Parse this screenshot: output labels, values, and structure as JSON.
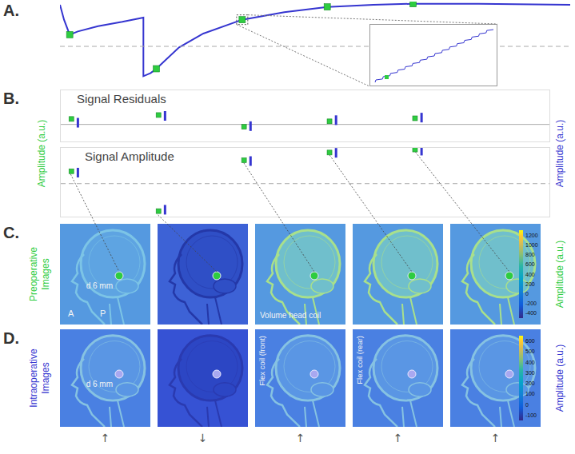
{
  "chart_data": [
    {
      "type": "line",
      "xlim": [
        0,
        630
      ],
      "ylim": [
        20,
        95
      ],
      "tick_labels": false,
      "series": [
        {
          "type": "line",
          "color": "#3535d0",
          "x": [
            0,
            5,
            12,
            22,
            47,
            77,
            103,
            103,
            112,
            119,
            147,
            177,
            225,
            277,
            330,
            387,
            436,
            517,
            630
          ],
          "values": [
            92,
            78,
            64,
            67,
            72,
            76,
            80,
            25,
            28,
            32,
            52,
            65,
            78,
            85,
            90,
            92,
            93,
            93,
            92
          ]
        },
        {
          "type": "scatter",
          "marker": "square",
          "color": "#2ecc40",
          "x": [
            12,
            119,
            225,
            330,
            436
          ],
          "values": [
            64,
            32,
            78,
            90,
            93
          ]
        },
        {
          "type": "reference",
          "line_style": "dashed",
          "color": "#aaaaaa",
          "values": [
            53
          ]
        }
      ]
    },
    {
      "type": "scatter",
      "title": "Signal Residuals",
      "xlim": [
        0,
        6
      ],
      "ylim": [
        -1,
        2
      ],
      "tick_labels": false,
      "series": [
        {
          "type": "scatter",
          "marker": "square",
          "color": "#2ecc40",
          "x": [
            0.13,
            1.2,
            2.25,
            3.3,
            4.35
          ],
          "values": [
            0.32,
            0.55,
            -0.14,
            0.18,
            0.36
          ]
        },
        {
          "type": "scatter",
          "marker": "bar",
          "color": "#3535d0",
          "x": [
            0.21,
            1.28,
            2.33,
            3.38,
            4.43
          ],
          "values": [
            0.1,
            0.5,
            -0.1,
            0.25,
            0.4
          ]
        },
        {
          "type": "reference",
          "line_style": "solid",
          "color": "#aaaaaa",
          "values": [
            0
          ]
        }
      ]
    },
    {
      "type": "scatter",
      "title": "Signal Amplitude",
      "xlim": [
        0,
        6
      ],
      "ylim": [
        -1.2,
        1.3
      ],
      "tick_labels": false,
      "series": [
        {
          "type": "scatter",
          "marker": "square",
          "color": "#2ecc40",
          "x": [
            0.13,
            1.2,
            2.25,
            3.3,
            4.35
          ],
          "values": [
            0.45,
            -1.0,
            0.85,
            1.13,
            1.24
          ]
        },
        {
          "type": "scatter",
          "marker": "bar",
          "color": "#3535d0",
          "x": [
            0.21,
            1.28,
            2.33,
            3.38,
            4.43
          ],
          "values": [
            0.4,
            -0.95,
            0.82,
            1.12,
            1.2
          ]
        },
        {
          "type": "reference",
          "line_style": "dashed",
          "color": "#aaaaaa",
          "values": [
            0
          ]
        }
      ]
    }
  ],
  "figure": {
    "panel_labels": [
      "A.",
      "B.",
      "C.",
      "D."
    ],
    "B": {
      "left_axis_label": {
        "text": "Amplitude (a.u.)",
        "color": "#2ecc40"
      },
      "right_axis_label": {
        "text": "Amplitude (a.u.)",
        "color": "#3535d0"
      }
    },
    "rows": [
      {
        "row_label": "Preoperative Images",
        "axis_label": "Amplitude (a.u.)",
        "color": "#2ecc40",
        "colorbar": {
          "range": [
            -500,
            1300
          ],
          "ticks": [
            1200,
            1000,
            800,
            600,
            400,
            200,
            0,
            -200,
            -400
          ]
        },
        "images": [
          {
            "depth": "d 6 mm",
            "anterior": "A",
            "posterior": "P"
          },
          {},
          {
            "coil": "Volume head coil"
          },
          {},
          {}
        ]
      },
      {
        "row_label": "Intraoperative Images",
        "axis_label": "Amplitude (a.u.)",
        "color": "#3535d0",
        "colorbar": {
          "range": [
            -150,
            650
          ],
          "ticks": [
            600,
            500,
            400,
            300,
            200,
            100,
            0,
            -100
          ]
        },
        "images": [
          {
            "depth": "d 6 mm"
          },
          {},
          {
            "coil_vertical": "Flex coil (front)"
          },
          {
            "coil_vertical": "Flex coil (rear)"
          },
          {}
        ]
      }
    ],
    "arrows": [
      "↑",
      "↓",
      "↑",
      "↑",
      "↑"
    ]
  }
}
